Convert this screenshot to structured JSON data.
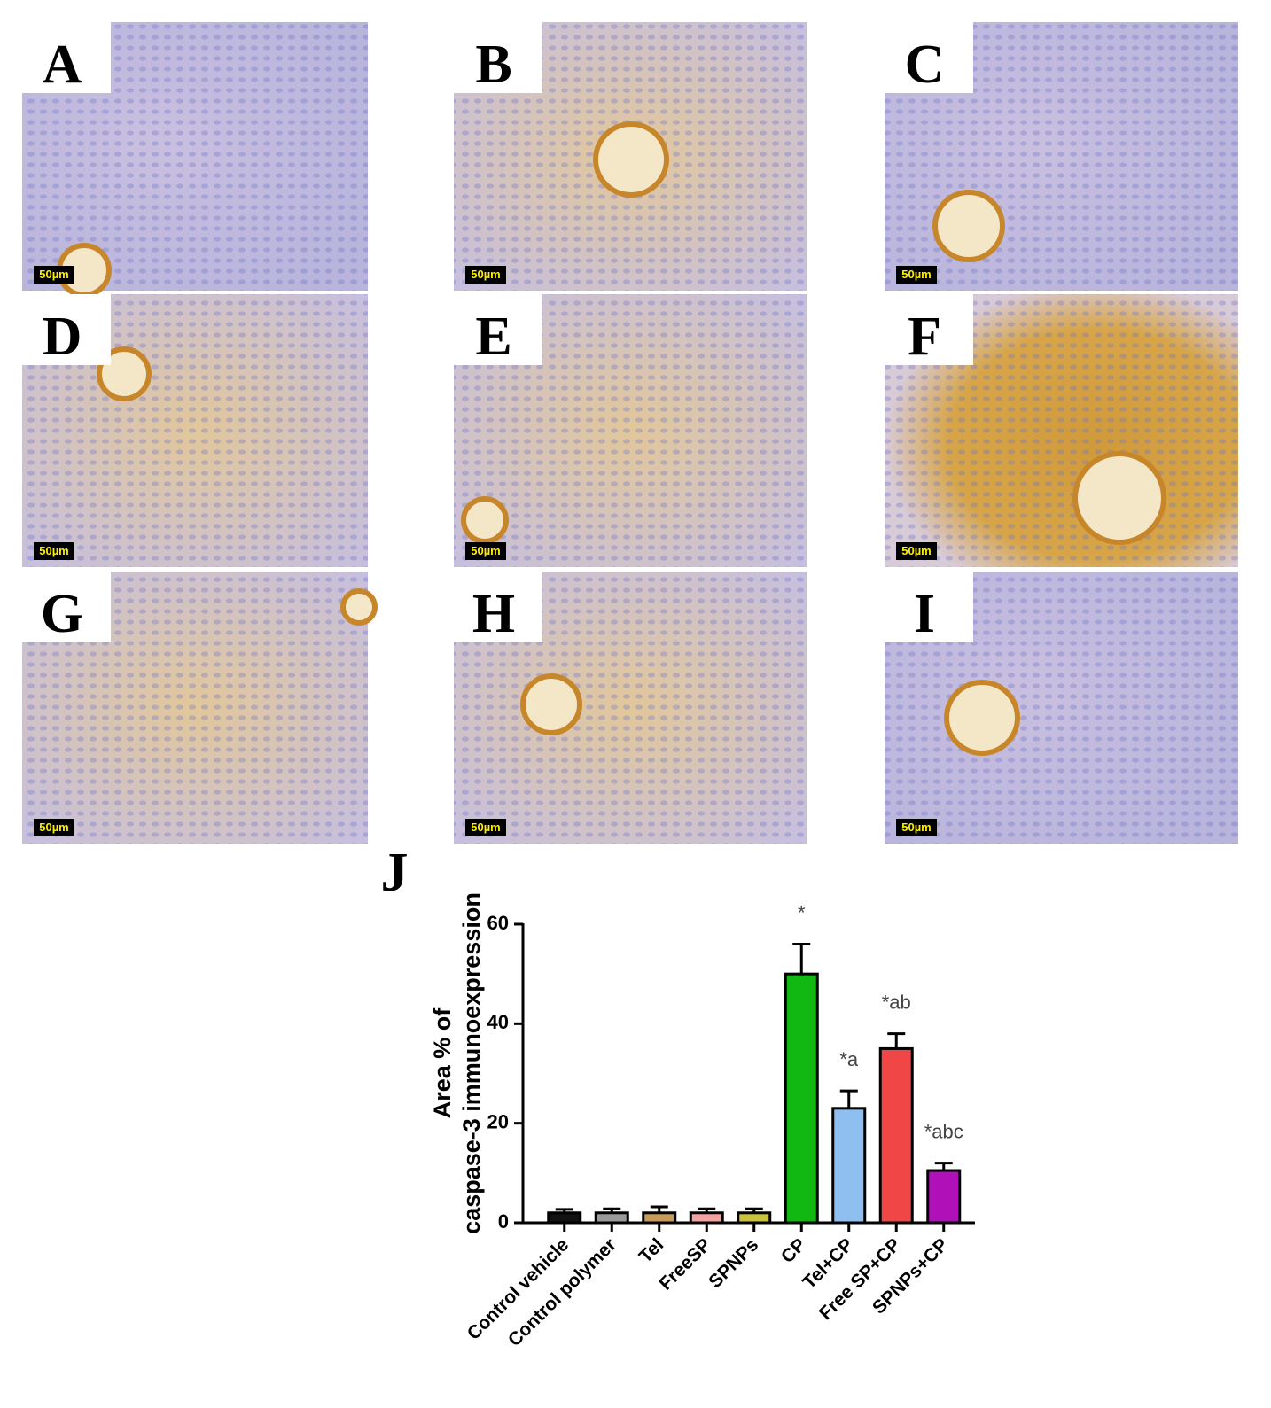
{
  "panels": [
    {
      "label": "A",
      "scale": "50µm"
    },
    {
      "label": "B",
      "scale": "50µm"
    },
    {
      "label": "C",
      "scale": "50µm"
    },
    {
      "label": "D",
      "scale": "50µm"
    },
    {
      "label": "E",
      "scale": "50µm"
    },
    {
      "label": "F",
      "scale": "50µm"
    },
    {
      "label": "G",
      "scale": "50µm"
    },
    {
      "label": "H",
      "scale": "50µm"
    },
    {
      "label": "I",
      "scale": "50µm"
    }
  ],
  "chart_data": {
    "type": "bar",
    "panel_label": "J",
    "ylabel": [
      "Area % of",
      "caspase-3 immunoexpression"
    ],
    "categories": [
      "Control vehicle",
      "Control polymer",
      "Tel",
      "FreeSP",
      "SPNPs",
      "CP",
      "Tel+CP",
      "Free SP+CP",
      "SPNPs+CP"
    ],
    "values": [
      2,
      2,
      2,
      2,
      2,
      50,
      23,
      35,
      10.5
    ],
    "errors": [
      0.7,
      0.8,
      1.2,
      0.8,
      0.8,
      6,
      3.5,
      3,
      1.5
    ],
    "annotations": [
      null,
      null,
      null,
      null,
      null,
      "*",
      "*a",
      "*ab",
      "*abc"
    ],
    "colors": [
      "#111111",
      "#9a9a9a",
      "#c89a5a",
      "#f4a3a3",
      "#c8c23c",
      "#12b812",
      "#8fbff0",
      "#f04646",
      "#b010b8"
    ],
    "ylim": [
      0,
      60
    ],
    "yticks": [
      0,
      20,
      40,
      60
    ]
  }
}
